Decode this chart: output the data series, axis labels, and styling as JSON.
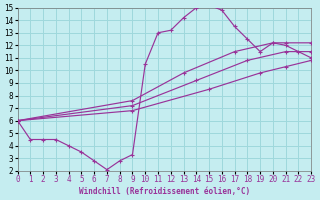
{
  "bg_color": "#c5edf0",
  "grid_color": "#9ed8dc",
  "line_color": "#993399",
  "xlabel": "Windchill (Refroidissement éolien,°C)",
  "xlim": [
    0,
    23
  ],
  "ylim": [
    2,
    15
  ],
  "xticks": [
    0,
    1,
    2,
    3,
    4,
    5,
    6,
    7,
    8,
    9,
    10,
    11,
    12,
    13,
    14,
    15,
    16,
    17,
    18,
    19,
    20,
    21,
    22,
    23
  ],
  "yticks": [
    2,
    3,
    4,
    5,
    6,
    7,
    8,
    9,
    10,
    11,
    12,
    13,
    14,
    15
  ],
  "curve_jagged_x": [
    0,
    1,
    2,
    3,
    4,
    5,
    6,
    7,
    8,
    9,
    10,
    11,
    12,
    13,
    14,
    15,
    16,
    17,
    18,
    19,
    20,
    21,
    22,
    23
  ],
  "curve_jagged_y": [
    6.0,
    4.5,
    4.5,
    4.5,
    4.0,
    3.5,
    2.8,
    2.1,
    2.8,
    3.3,
    10.5,
    13.0,
    13.2,
    14.2,
    15.0,
    15.2,
    14.8,
    13.5,
    12.5,
    11.5,
    12.2,
    12.0,
    11.5,
    11.0
  ],
  "curve_line1_x": [
    0,
    9,
    15,
    19,
    21,
    23
  ],
  "curve_line1_y": [
    6.0,
    6.8,
    8.5,
    9.8,
    10.3,
    10.8
  ],
  "curve_line2_x": [
    0,
    9,
    14,
    18,
    21,
    23
  ],
  "curve_line2_y": [
    6.0,
    7.2,
    9.2,
    10.8,
    11.5,
    11.5
  ],
  "curve_line3_x": [
    0,
    9,
    13,
    17,
    20,
    21,
    23
  ],
  "curve_line3_y": [
    6.0,
    7.6,
    9.8,
    11.5,
    12.2,
    12.2,
    12.2
  ]
}
